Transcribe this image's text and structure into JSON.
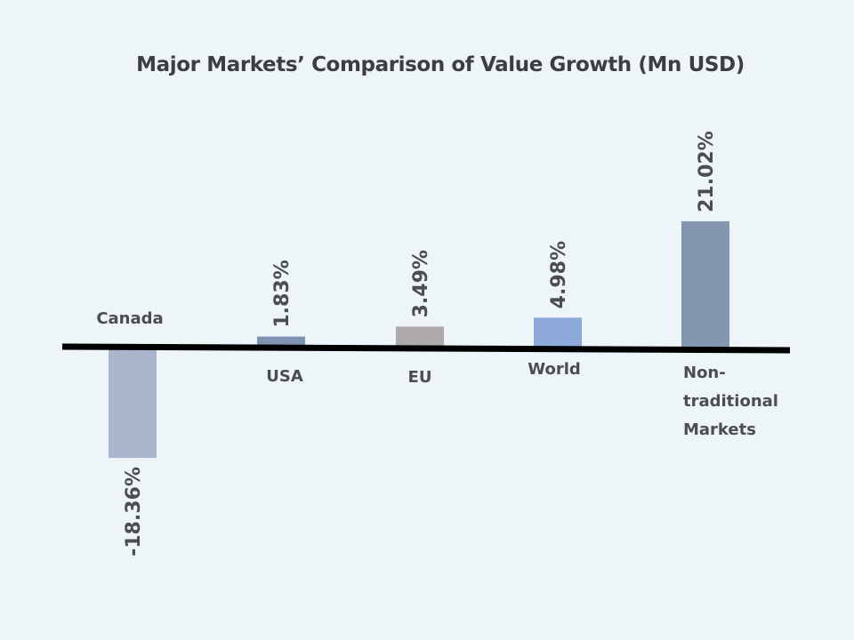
{
  "chart_data": {
    "type": "bar",
    "title": "Major Markets’ Comparison of Value Growth (Mn USD)",
    "xlabel": "",
    "ylabel": "",
    "grid": false,
    "legend": "none",
    "ylim": [
      -18.36,
      21.02
    ],
    "categories": [
      "Canada",
      "USA",
      "EU",
      "World",
      "Non-traditional Markets"
    ],
    "category_lines": [
      [
        "Canada"
      ],
      [
        "USA"
      ],
      [
        "EU"
      ],
      [
        "World"
      ],
      [
        "Non-",
        "traditional",
        "Markets"
      ]
    ],
    "values": [
      -18.36,
      1.83,
      3.49,
      4.98,
      21.02
    ],
    "data_labels": [
      "-18.36%",
      "1.83%",
      "3.49%",
      "4.98%",
      "21.02%"
    ],
    "colors": [
      "#a9b5ca",
      "#7f93b3",
      "#aeaaaa",
      "#8eaadb",
      "#8497b0"
    ]
  }
}
